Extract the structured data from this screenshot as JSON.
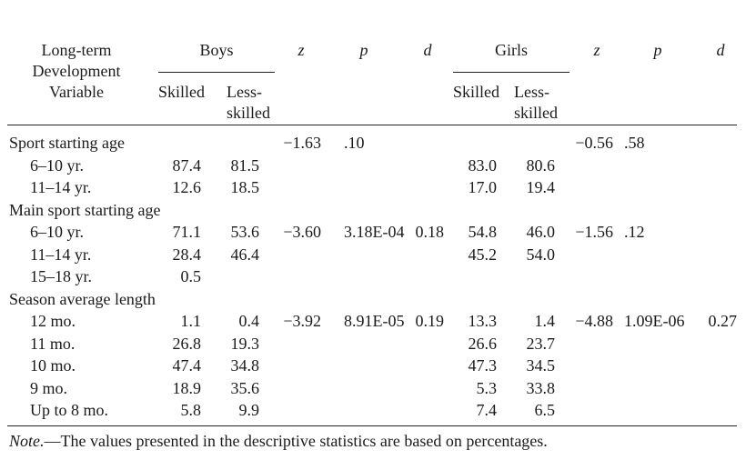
{
  "header": {
    "variable_label": [
      "Long-term",
      "Development",
      "Variable"
    ],
    "boys": "Boys",
    "girls": "Girls",
    "z": "z",
    "p": "p",
    "d": "d",
    "skilled": "Skilled",
    "less_skilled": [
      "Less-",
      "skilled"
    ]
  },
  "rows": [
    {
      "label": "Sport starting age",
      "indent": false,
      "boys_skilled": "",
      "boys_less": "",
      "bz": "−1.63",
      "bp": ".10",
      "bd": "",
      "girls_skilled": "",
      "girls_less": "",
      "gz": "−0.56",
      "gp": ".58",
      "gd": ""
    },
    {
      "label": "6–10 yr.",
      "indent": true,
      "boys_skilled": "87.4",
      "boys_less": "81.5",
      "bz": "",
      "bp": "",
      "bd": "",
      "girls_skilled": "83.0",
      "girls_less": "80.6",
      "gz": "",
      "gp": "",
      "gd": ""
    },
    {
      "label": "11–14 yr.",
      "indent": true,
      "boys_skilled": "12.6",
      "boys_less": "18.5",
      "bz": "",
      "bp": "",
      "bd": "",
      "girls_skilled": "17.0",
      "girls_less": "19.4",
      "gz": "",
      "gp": "",
      "gd": ""
    },
    {
      "label": "Main sport starting age",
      "indent": false,
      "boys_skilled": "",
      "boys_less": "",
      "bz": "",
      "bp": "",
      "bd": "",
      "girls_skilled": "",
      "girls_less": "",
      "gz": "",
      "gp": "",
      "gd": ""
    },
    {
      "label": "6–10 yr.",
      "indent": true,
      "boys_skilled": "71.1",
      "boys_less": "53.6",
      "bz": "−3.60",
      "bp": "3.18E-04",
      "bd": "0.18",
      "girls_skilled": "54.8",
      "girls_less": "46.0",
      "gz": "−1.56",
      "gp": ".12",
      "gd": ""
    },
    {
      "label": "11–14 yr.",
      "indent": true,
      "boys_skilled": "28.4",
      "boys_less": "46.4",
      "bz": "",
      "bp": "",
      "bd": "",
      "girls_skilled": "45.2",
      "girls_less": "54.0",
      "gz": "",
      "gp": "",
      "gd": ""
    },
    {
      "label": "15–18 yr.",
      "indent": true,
      "boys_skilled": "0.5",
      "boys_less": "",
      "bz": "",
      "bp": "",
      "bd": "",
      "girls_skilled": "",
      "girls_less": "",
      "gz": "",
      "gp": "",
      "gd": ""
    },
    {
      "label": "Season average length",
      "indent": false,
      "boys_skilled": "",
      "boys_less": "",
      "bz": "",
      "bp": "",
      "bd": "",
      "girls_skilled": "",
      "girls_less": "",
      "gz": "",
      "gp": "",
      "gd": ""
    },
    {
      "label": "12 mo.",
      "indent": true,
      "boys_skilled": "1.1",
      "boys_less": "0.4",
      "bz": "−3.92",
      "bp": "8.91E-05",
      "bd": "0.19",
      "girls_skilled": "13.3",
      "girls_less": "1.4",
      "gz": "−4.88",
      "gp": "1.09E-06",
      "gd": "0.27"
    },
    {
      "label": "11 mo.",
      "indent": true,
      "boys_skilled": "26.8",
      "boys_less": "19.3",
      "bz": "",
      "bp": "",
      "bd": "",
      "girls_skilled": "26.6",
      "girls_less": "23.7",
      "gz": "",
      "gp": "",
      "gd": ""
    },
    {
      "label": "10 mo.",
      "indent": true,
      "boys_skilled": "47.4",
      "boys_less": "34.8",
      "bz": "",
      "bp": "",
      "bd": "",
      "girls_skilled": "47.3",
      "girls_less": "34.5",
      "gz": "",
      "gp": "",
      "gd": ""
    },
    {
      "label": "9 mo.",
      "indent": true,
      "boys_skilled": "18.9",
      "boys_less": "35.6",
      "bz": "",
      "bp": "",
      "bd": "",
      "girls_skilled": "5.3",
      "girls_less": "33.8",
      "gz": "",
      "gp": "",
      "gd": ""
    },
    {
      "label": "Up to 8 mo.",
      "indent": true,
      "boys_skilled": "5.8",
      "boys_less": "9.9",
      "bz": "",
      "bp": "",
      "bd": "",
      "girls_skilled": "7.4",
      "girls_less": "6.5",
      "gz": "",
      "gp": "",
      "gd": ""
    }
  ],
  "note": {
    "prefix": "Note.",
    "text": "—The values presented in the descriptive statistics are based on percentages."
  }
}
